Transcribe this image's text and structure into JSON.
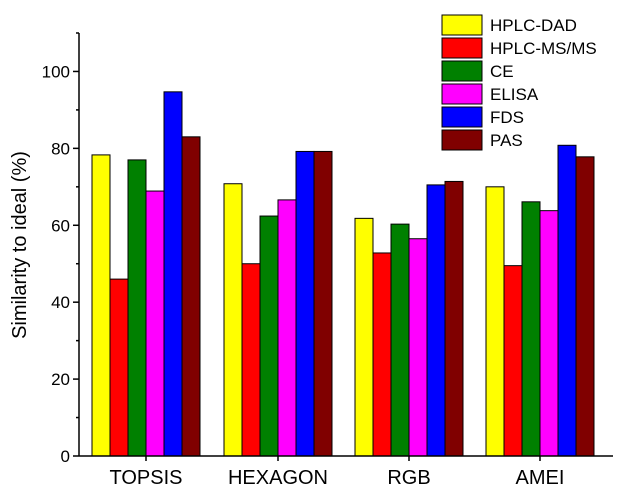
{
  "chart_data": {
    "type": "bar",
    "title": "",
    "xlabel": "",
    "ylabel": "Similarity to ideal (%)",
    "ylim": [
      0,
      110
    ],
    "yticks": [
      0,
      20,
      40,
      60,
      80,
      100
    ],
    "grid": false,
    "legend_position": "top-right",
    "categories": [
      "TOPSIS",
      "HEXAGON",
      "RGB",
      "AMEI"
    ],
    "series": [
      {
        "name": "HPLC-DAD",
        "color": "#ffff00",
        "values": [
          78.3,
          70.8,
          61.8,
          70.0
        ]
      },
      {
        "name": "HPLC-MS/MS",
        "color": "#ff0000",
        "values": [
          46.0,
          50.0,
          52.8,
          49.5
        ]
      },
      {
        "name": "CE",
        "color": "#008000",
        "values": [
          77.0,
          62.4,
          60.3,
          66.1
        ]
      },
      {
        "name": "ELISA",
        "color": "#ff00ff",
        "values": [
          68.9,
          66.6,
          56.5,
          63.8
        ]
      },
      {
        "name": "FDS",
        "color": "#0000ff",
        "values": [
          94.7,
          79.2,
          70.5,
          80.8
        ]
      },
      {
        "name": "PAS",
        "color": "#800000",
        "values": [
          83.0,
          79.2,
          71.4,
          77.8
        ]
      }
    ]
  }
}
